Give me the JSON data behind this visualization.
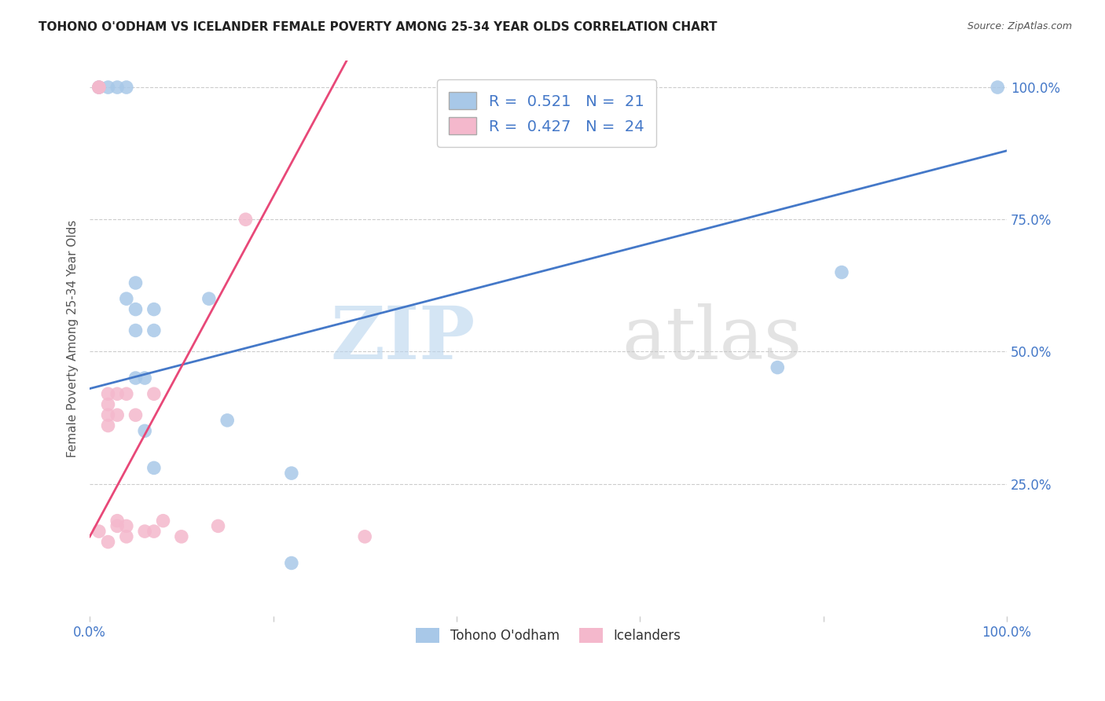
{
  "title": "TOHONO O'ODHAM VS ICELANDER FEMALE POVERTY AMONG 25-34 YEAR OLDS CORRELATION CHART",
  "source": "Source: ZipAtlas.com",
  "ylabel": "Female Poverty Among 25-34 Year Olds",
  "xlim": [
    0,
    1
  ],
  "ylim": [
    0,
    1.05
  ],
  "xtick_positions": [
    0.0,
    0.2,
    0.4,
    0.6,
    0.8,
    1.0
  ],
  "xtick_labels": [
    "0.0%",
    "",
    "",
    "",
    "",
    "100.0%"
  ],
  "ytick_positions": [
    0.25,
    0.5,
    0.75,
    1.0
  ],
  "ytick_labels": [
    "25.0%",
    "50.0%",
    "75.0%",
    "100.0%"
  ],
  "watermark_zip": "ZIP",
  "watermark_atlas": "atlas",
  "blue_R": 0.521,
  "blue_N": 21,
  "pink_R": 0.427,
  "pink_N": 24,
  "blue_color": "#a8c8e8",
  "pink_color": "#f4b8cc",
  "blue_line_color": "#4478c8",
  "pink_line_color": "#e84878",
  "legend_label_blue": "Tohono O'odham",
  "legend_label_pink": "Icelanders",
  "blue_scatter_x": [
    0.01,
    0.02,
    0.03,
    0.04,
    0.04,
    0.05,
    0.05,
    0.05,
    0.05,
    0.06,
    0.06,
    0.07,
    0.07,
    0.07,
    0.13,
    0.15,
    0.22,
    0.75,
    0.82,
    0.99,
    0.22
  ],
  "blue_scatter_y": [
    1.0,
    1.0,
    1.0,
    1.0,
    0.6,
    0.63,
    0.58,
    0.54,
    0.45,
    0.45,
    0.35,
    0.58,
    0.54,
    0.28,
    0.6,
    0.37,
    0.1,
    0.47,
    0.65,
    1.0,
    0.27
  ],
  "pink_scatter_x": [
    0.01,
    0.01,
    0.01,
    0.02,
    0.02,
    0.02,
    0.02,
    0.02,
    0.03,
    0.03,
    0.03,
    0.03,
    0.04,
    0.04,
    0.04,
    0.05,
    0.06,
    0.07,
    0.07,
    0.08,
    0.1,
    0.14,
    0.17,
    0.3
  ],
  "pink_scatter_y": [
    1.0,
    1.0,
    0.16,
    0.42,
    0.4,
    0.38,
    0.36,
    0.14,
    0.42,
    0.38,
    0.18,
    0.17,
    0.42,
    0.17,
    0.15,
    0.38,
    0.16,
    0.42,
    0.16,
    0.18,
    0.15,
    0.17,
    0.75,
    0.15
  ],
  "blue_line_x0": 0.0,
  "blue_line_x1": 1.0,
  "blue_line_y0": 0.43,
  "blue_line_y1": 0.88,
  "pink_line_x0": 0.0,
  "pink_line_x1": 0.28,
  "pink_line_y0": 0.15,
  "pink_line_y1": 1.05,
  "background_color": "#ffffff",
  "grid_color": "#cccccc",
  "tick_color": "#4478c8",
  "label_color": "#555555"
}
